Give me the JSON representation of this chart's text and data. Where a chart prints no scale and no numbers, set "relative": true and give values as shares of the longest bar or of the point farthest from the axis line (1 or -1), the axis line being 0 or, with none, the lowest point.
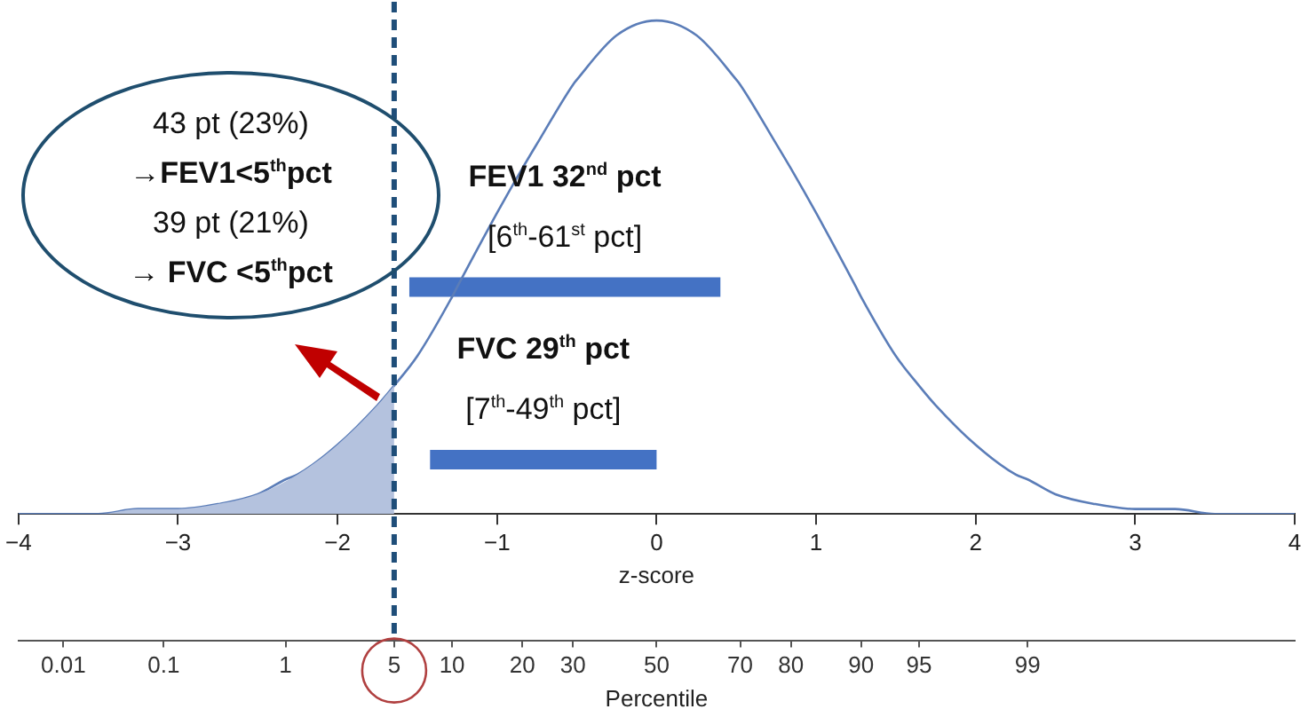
{
  "chart_data": {
    "type": "line",
    "relative": true,
    "xlabel": "z-score",
    "x2label": "Percentile",
    "xlim": [
      -4,
      4
    ],
    "xticks": [
      {
        "value": -4,
        "label": "−4"
      },
      {
        "value": -3,
        "label": "−3"
      },
      {
        "value": -2,
        "label": "−2"
      },
      {
        "value": -1,
        "label": "−1"
      },
      0,
      1,
      2,
      3,
      4
    ],
    "grid": false,
    "legend": false,
    "marker": "none",
    "line_style": "solid",
    "series": [
      {
        "type": "area",
        "color": "#b4c2de",
        "x": [
          -4,
          -3.75,
          -3.5,
          -3.25,
          -3,
          -2.75,
          -2.5,
          -2.25,
          -2,
          -1.75,
          -1.645
        ],
        "values": [
          0,
          0,
          0,
          0.01,
          0.01,
          0.02,
          0.04,
          0.08,
          0.14,
          0.22,
          0.26
        ]
      },
      {
        "type": "line",
        "color": "#5b7db8",
        "x": [
          -4,
          -3.75,
          -3.719,
          -3.5,
          -3.25,
          -3.09,
          -3,
          -2.75,
          -2.5,
          -2.326,
          -2.25,
          -2,
          -1.75,
          -1.645,
          -1.5,
          -1.282,
          -1.25,
          -1,
          -0.842,
          -0.75,
          -0.524,
          -0.5,
          -0.25,
          0,
          0.25,
          0.5,
          0.524,
          0.75,
          0.842,
          1,
          1.25,
          1.282,
          1.5,
          1.645,
          1.75,
          2,
          2.25,
          2.326,
          2.5,
          2.75,
          3,
          3.25,
          3.5,
          3.75,
          4
        ],
        "values": [
          0,
          0,
          0,
          0,
          0.01,
          0.01,
          0.01,
          0.02,
          0.04,
          0.07,
          0.08,
          0.14,
          0.22,
          0.26,
          0.32,
          0.44,
          0.46,
          0.61,
          0.7,
          0.75,
          0.87,
          0.88,
          0.97,
          1,
          0.97,
          0.88,
          0.87,
          0.75,
          0.7,
          0.61,
          0.46,
          0.44,
          0.32,
          0.26,
          0.22,
          0.14,
          0.08,
          0.07,
          0.04,
          0.02,
          0.01,
          0.01,
          0,
          0,
          0
        ]
      },
      {
        "type": "line",
        "color": "#4472c4",
        "x": [
          -1.55,
          0.4
        ],
        "values": [
          0.46,
          0.46
        ]
      },
      {
        "type": "line",
        "color": "#4472c4",
        "x": [
          -1.42,
          0
        ],
        "values": [
          0.11,
          0.11
        ]
      }
    ],
    "ref_lines": [
      {
        "axis": "x",
        "value": -1.645,
        "color": "#1f4e79",
        "line_style": "dashed"
      }
    ],
    "annotations": [
      "43 pt (23%)",
      "→FEV1<5$^{th}$pct",
      "39 pt (21%)",
      "→ FVC <5$^{th}$pct",
      "FEV1 32$^{nd}$ pct",
      "[6$^{th}$-61$^{st}$ pct]",
      "FVC 29$^{th}$ pct",
      "[7$^{th}$-49$^{th}$ pct]",
      {
        "text": "0.01",
        "x": -3.719
      },
      {
        "text": "0.1",
        "x": -3.09
      },
      {
        "text": "1",
        "x": -2.326
      },
      {
        "text": "5",
        "x": -1.645
      },
      {
        "text": "10",
        "x": -1.282
      },
      {
        "text": "20",
        "x": -0.842
      },
      {
        "text": "30",
        "x": -0.524
      },
      {
        "text": "50",
        "x": 0
      },
      {
        "text": "70",
        "x": 0.524
      },
      {
        "text": "80",
        "x": 0.842
      },
      {
        "text": "90",
        "x": 1.282
      },
      {
        "text": "95",
        "x": 1.645
      },
      {
        "text": "99",
        "x": 2.326
      }
    ]
  }
}
